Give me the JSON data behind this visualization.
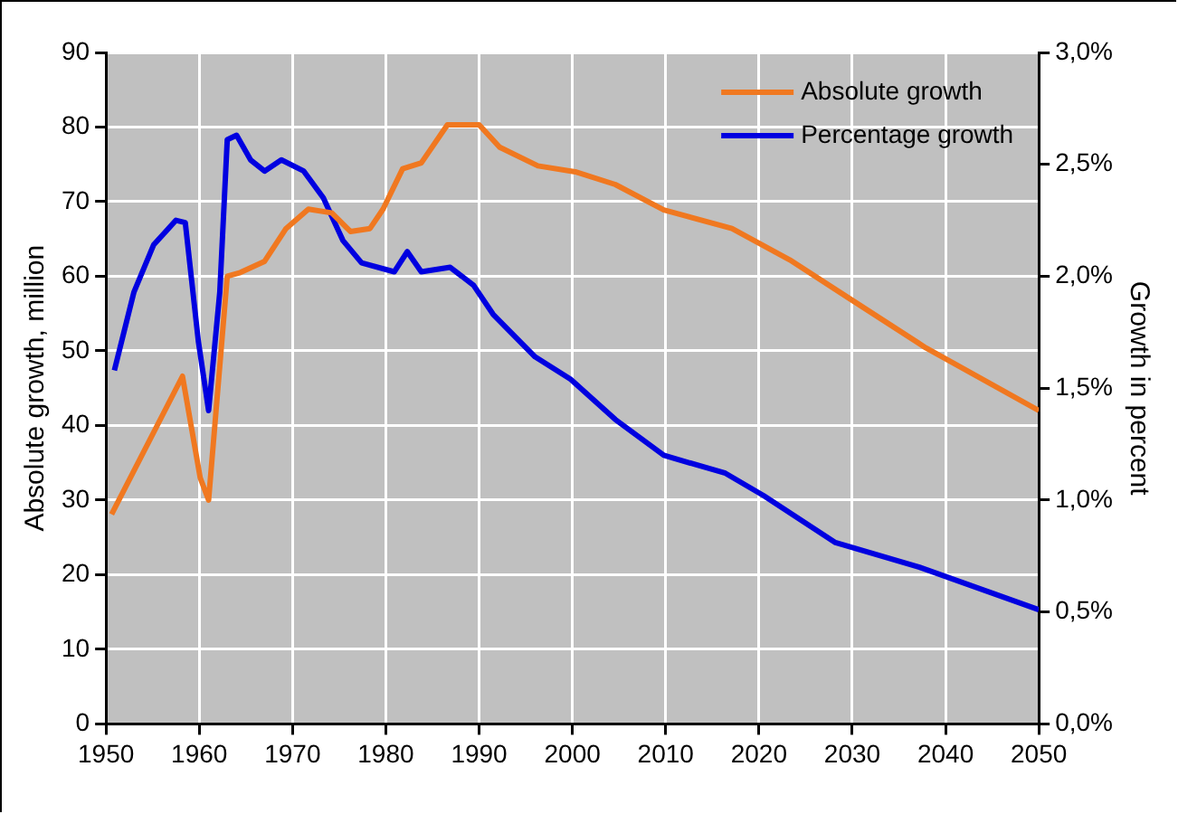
{
  "chart_data": {
    "type": "line",
    "xlabel": null,
    "ylabel": "Absolute growth, million",
    "y2label": "Growth in percent",
    "xlim": [
      1950,
      2050
    ],
    "xticks": [
      1950,
      1960,
      1970,
      1980,
      1990,
      2000,
      2010,
      2020,
      2030,
      2040,
      2050
    ],
    "ylim": [
      0,
      90
    ],
    "yticks": [
      0,
      10,
      20,
      30,
      40,
      50,
      60,
      70,
      80,
      90
    ],
    "y2lim": [
      0,
      3
    ],
    "y2ticks": [
      {
        "value": 0,
        "label": "0,0%"
      },
      {
        "value": 0.5,
        "label": "0,5%"
      },
      {
        "value": 1,
        "label": "1,0%"
      },
      {
        "value": 1.5,
        "label": "1,5%"
      },
      {
        "value": 2,
        "label": "2,0%"
      },
      {
        "value": 2.5,
        "label": "2,5%"
      },
      {
        "value": 3,
        "label": "3,0%"
      }
    ],
    "grid": true,
    "legend": "top right",
    "marker": "none",
    "line_style": "solid",
    "series": [
      {
        "name": "Absolute growth",
        "color": "#f07820",
        "x": [
          1950.6,
          1958.2,
          1960.1,
          1961,
          1963,
          1964.4,
          1967,
          1969.3,
          1971.7,
          1974.2,
          1976.2,
          1978.3,
          1979.7,
          1981.8,
          1983.8,
          1986.6,
          1990,
          1992.2,
          1996.3,
          2000.3,
          2004.6,
          2009.8,
          2017.1,
          2023.3,
          2029.6,
          2037.9,
          2050
        ],
        "values": [
          28.1,
          46.6,
          33,
          30,
          60,
          60.5,
          62,
          66.4,
          69,
          68.5,
          66,
          66.4,
          69,
          74.4,
          75.2,
          80.3,
          80.3,
          77.3,
          74.8,
          74,
          72.3,
          68.9,
          66.4,
          62.2,
          57.1,
          50.4,
          42
        ]
      },
      {
        "name": "Percentage growth",
        "color": "#0000e0",
        "axis": "y2",
        "x": [
          1950.9,
          1953,
          1955.1,
          1957.5,
          1958.5,
          1959.9,
          1961,
          1962.2,
          1963,
          1964,
          1965.5,
          1967,
          1968.8,
          1971.2,
          1973.3,
          1975.4,
          1977.4,
          1980.9,
          1982.3,
          1983.8,
          1986.9,
          1989.4,
          1991.5,
          1996,
          1999.8,
          2004.6,
          2009.8,
          2016.4,
          2020.5,
          2028.2,
          2037.2,
          2050
        ],
        "values": [
          1.58,
          1.93,
          2.14,
          2.25,
          2.24,
          1.71,
          1.4,
          1.93,
          2.61,
          2.63,
          2.52,
          2.47,
          2.52,
          2.47,
          2.35,
          2.16,
          2.06,
          2.02,
          2.11,
          2.02,
          2.04,
          1.96,
          1.83,
          1.64,
          1.54,
          1.36,
          1.2,
          1.12,
          1.02,
          0.81,
          0.7,
          0.51
        ]
      }
    ]
  }
}
